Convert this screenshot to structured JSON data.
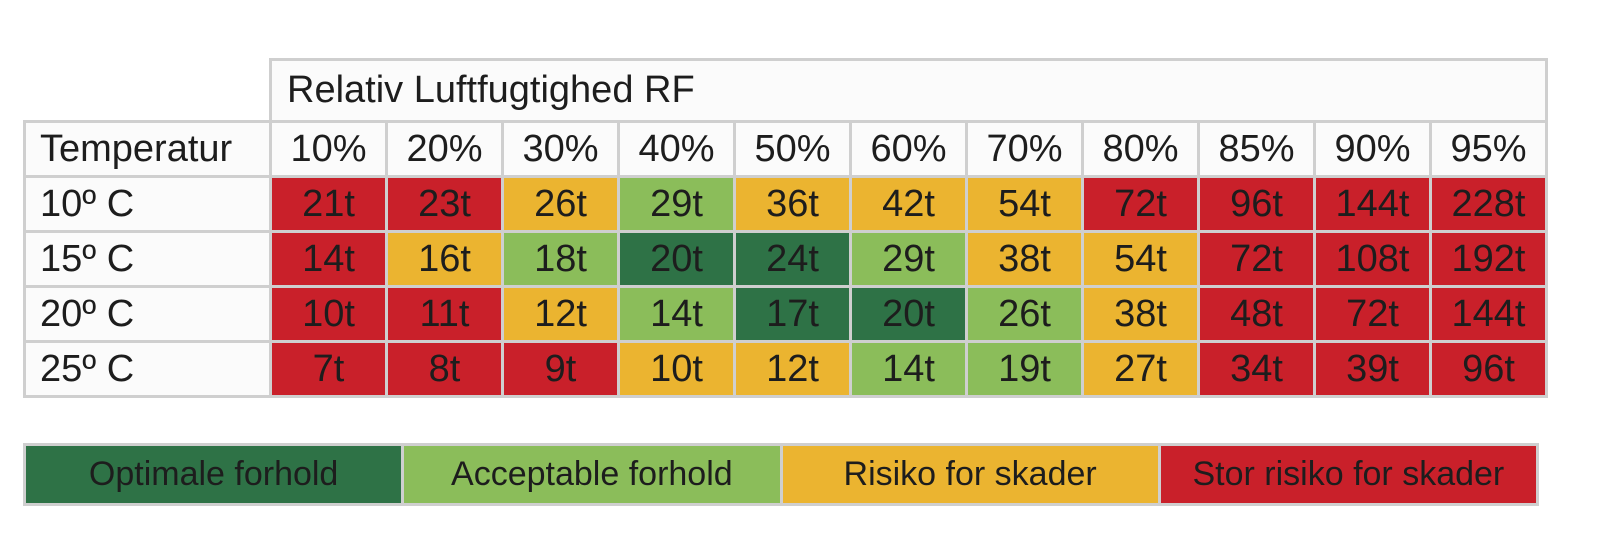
{
  "chart_data": {
    "type": "heatmap",
    "title": "Relativ Luftfugtighed RF",
    "row_header": "Temperatur",
    "columns": [
      "10%",
      "20%",
      "30%",
      "40%",
      "50%",
      "60%",
      "70%",
      "80%",
      "85%",
      "90%",
      "95%"
    ],
    "rows": [
      {
        "label": "10º C",
        "values": [
          "21t",
          "23t",
          "26t",
          "29t",
          "36t",
          "42t",
          "54t",
          "72t",
          "96t",
          "144t",
          "228t"
        ],
        "classes": [
          "stor",
          "stor",
          "risiko",
          "acceptable",
          "risiko",
          "risiko",
          "risiko",
          "stor",
          "stor",
          "stor",
          "stor"
        ]
      },
      {
        "label": "15º C",
        "values": [
          "14t",
          "16t",
          "18t",
          "20t",
          "24t",
          "29t",
          "38t",
          "54t",
          "72t",
          "108t",
          "192t"
        ],
        "classes": [
          "stor",
          "risiko",
          "acceptable",
          "optimal",
          "optimal",
          "acceptable",
          "risiko",
          "risiko",
          "stor",
          "stor",
          "stor"
        ]
      },
      {
        "label": "20º C",
        "values": [
          "10t",
          "11t",
          "12t",
          "14t",
          "17t",
          "20t",
          "26t",
          "38t",
          "48t",
          "72t",
          "144t"
        ],
        "classes": [
          "stor",
          "stor",
          "risiko",
          "acceptable",
          "optimal",
          "optimal",
          "acceptable",
          "risiko",
          "stor",
          "stor",
          "stor"
        ]
      },
      {
        "label": "25º C",
        "values": [
          "7t",
          "8t",
          "9t",
          "10t",
          "12t",
          "14t",
          "19t",
          "27t",
          "34t",
          "39t",
          "96t"
        ],
        "classes": [
          "stor",
          "stor",
          "stor",
          "risiko",
          "risiko",
          "acceptable",
          "acceptable",
          "risiko",
          "stor",
          "stor",
          "stor"
        ]
      }
    ],
    "legend": [
      {
        "key": "optimal",
        "label": "Optimale forhold",
        "color": "#2e7246"
      },
      {
        "key": "acceptable",
        "label": "Acceptable forhold",
        "color": "#8bbd5a"
      },
      {
        "key": "risiko",
        "label": "Risiko for skader",
        "color": "#ebb430"
      },
      {
        "key": "stor",
        "label": "Stor risiko for skader",
        "color": "#c9202a"
      }
    ],
    "grid": true
  }
}
